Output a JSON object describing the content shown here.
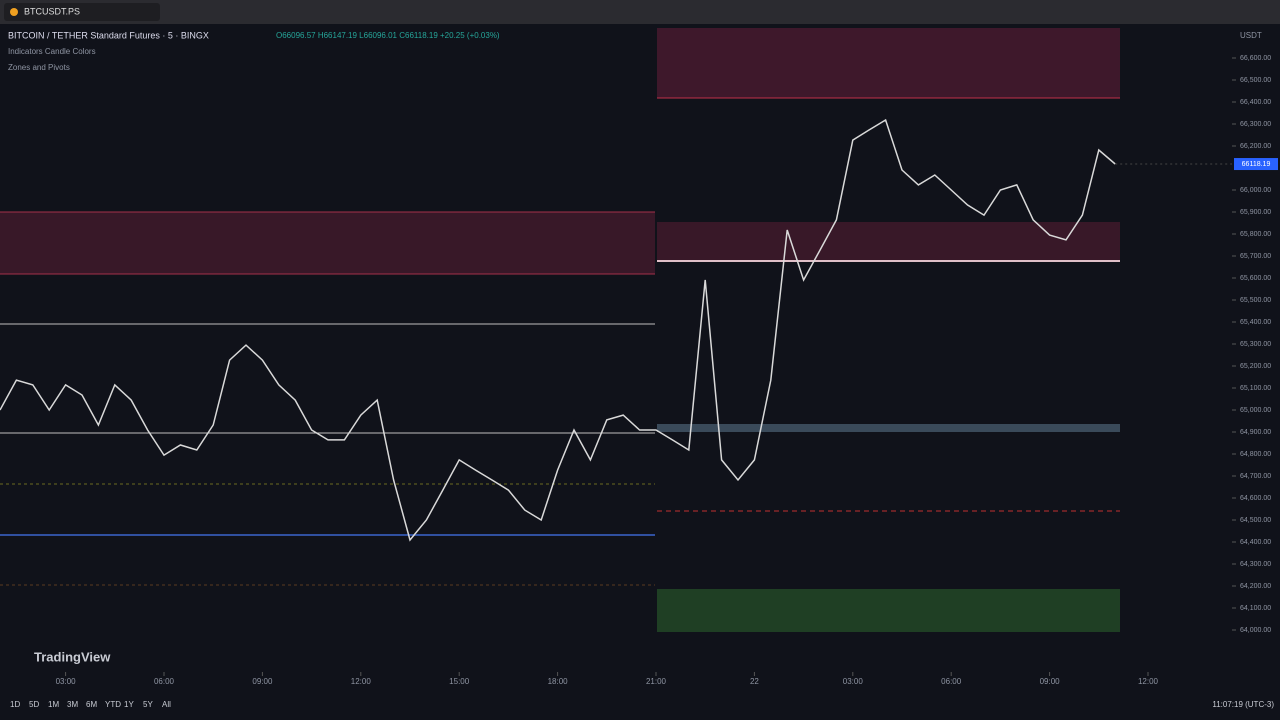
{
  "tab": {
    "title": "BTCUSDT.PS"
  },
  "header": {
    "symbol": "BITCOIN / TETHER Standard Futures · 5 · BINGX",
    "ohlc": "O66096.57 H66147.19 L66096.01 C66118.19 +20.25 (+0.03%)",
    "indicator_1": "Indicators Candle Colors",
    "indicator_2": "Zones and Pivots"
  },
  "logo": "TradingView",
  "currency": "USDT",
  "last_price": "66118.19",
  "toolbar": {
    "ranges": [
      "1D",
      "5D",
      "1M",
      "3M",
      "6M",
      "YTD",
      "1Y",
      "5Y",
      "All"
    ],
    "clock": "11:07:19 (UTC-3)"
  },
  "chart_data": {
    "type": "line",
    "color": "#d9d9d9",
    "values": [
      65000,
      65136,
      65114,
      65000,
      65114,
      65068,
      64932,
      65114,
      65045,
      64909,
      64795,
      64841,
      64818,
      64932,
      65227,
      65295,
      65227,
      65114,
      65045,
      64909,
      64864,
      64864,
      64977,
      65045,
      64682,
      64409,
      64500,
      64636,
      64773,
      64727,
      64682,
      64636,
      64545,
      64500,
      64727,
      64909,
      64773,
      64955,
      64977,
      64909,
      64909,
      64864,
      64818,
      65591,
      64773,
      64682,
      64773,
      65136,
      65818,
      65591,
      65727,
      65864,
      66227,
      66273,
      66318,
      66091,
      66023,
      66068,
      66000,
      65932,
      65886,
      66000,
      66023,
      65864,
      65795,
      65773,
      65886,
      66182,
      66118
    ],
    "xlim": [
      0,
      75
    ],
    "xticks": [
      {
        "value": 4,
        "label": "03:00"
      },
      {
        "value": 10,
        "label": "06:00"
      },
      {
        "value": 16,
        "label": "09:00"
      },
      {
        "value": 22,
        "label": "12:00"
      },
      {
        "value": 28,
        "label": "15:00"
      },
      {
        "value": 34,
        "label": "18:00"
      },
      {
        "value": 40,
        "label": "21:00"
      },
      {
        "value": 46,
        "label": "22"
      },
      {
        "value": 52,
        "label": "03:00"
      },
      {
        "value": 58,
        "label": "06:00"
      },
      {
        "value": 64,
        "label": "09:00"
      },
      {
        "value": 70,
        "label": "12:00"
      }
    ],
    "ylim": [
      63950,
      66700
    ],
    "yticks": [
      {
        "value": 64000,
        "label": "64,000.00"
      },
      {
        "value": 64100,
        "label": "64,100.00"
      },
      {
        "value": 64200,
        "label": "64,200.00"
      },
      {
        "value": 64300,
        "label": "64,300.00"
      },
      {
        "value": 64400,
        "label": "64,400.00"
      },
      {
        "value": 64500,
        "label": "64,500.00"
      },
      {
        "value": 64600,
        "label": "64,600.00"
      },
      {
        "value": 64700,
        "label": "64,700.00"
      },
      {
        "value": 64800,
        "label": "64,800.00"
      },
      {
        "value": 64900,
        "label": "64,900.00"
      },
      {
        "value": 65000,
        "label": "65,000.00"
      },
      {
        "value": 65100,
        "label": "65,100.00"
      },
      {
        "value": 65200,
        "label": "65,200.00"
      },
      {
        "value": 65300,
        "label": "65,300.00"
      },
      {
        "value": 65400,
        "label": "65,400.00"
      },
      {
        "value": 65500,
        "label": "65,500.00"
      },
      {
        "value": 65600,
        "label": "65,600.00"
      },
      {
        "value": 65700,
        "label": "65,700.00"
      },
      {
        "value": 65800,
        "label": "65,800.00"
      },
      {
        "value": 65900,
        "label": "65,900.00"
      },
      {
        "value": 66000,
        "label": "66,000.00"
      },
      {
        "value": 66200,
        "label": "66,200.00"
      },
      {
        "value": 66300,
        "label": "66,300.00"
      },
      {
        "value": 66400,
        "label": "66,400.00"
      },
      {
        "value": 66500,
        "label": "66,500.00"
      },
      {
        "value": 66600,
        "label": "66,600.00"
      }
    ]
  }
}
